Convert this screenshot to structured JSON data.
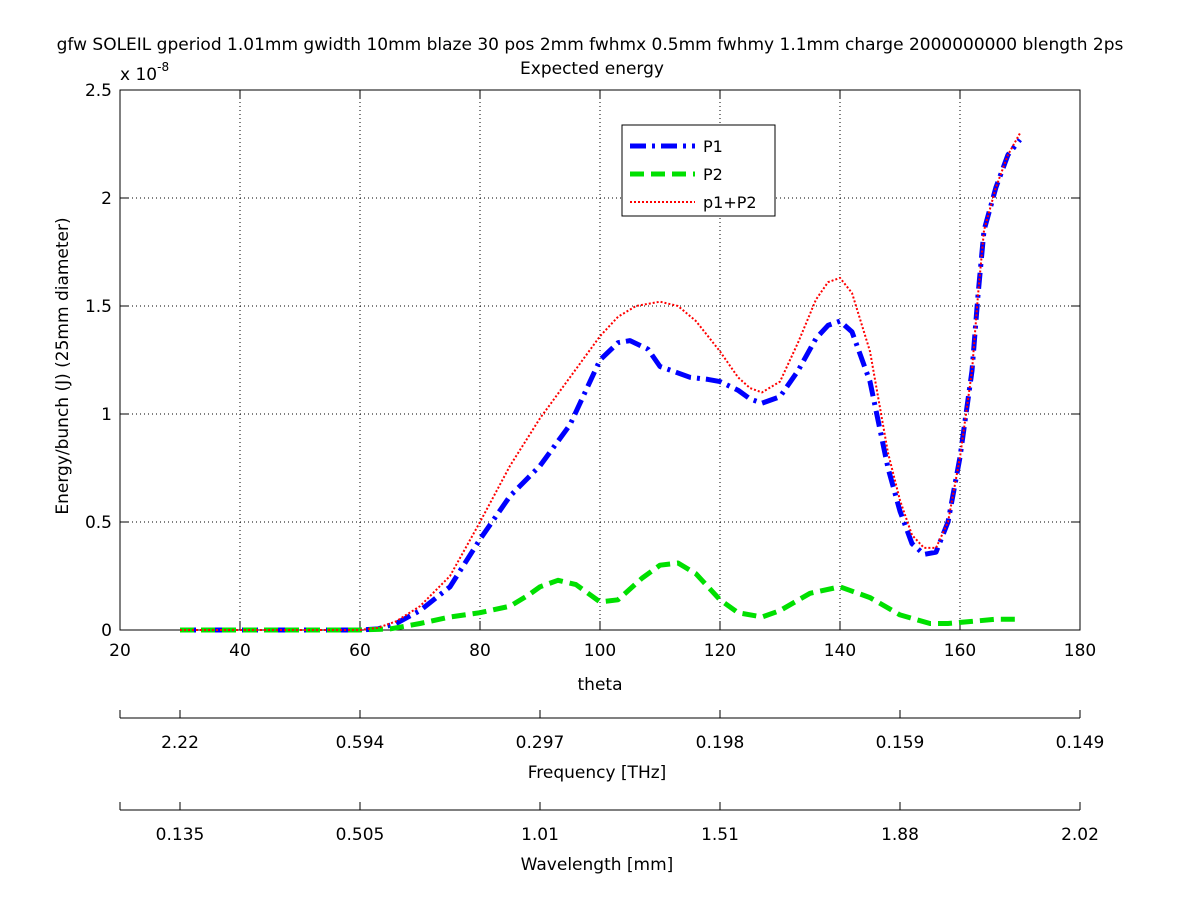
{
  "chart_data": {
    "type": "line",
    "title": "gfw SOLEIL gperiod 1.01mm gwidth 10mm blaze 30 pos 2mm fwhmx 0.5mm fwhmy 1.1mm charge 2000000000 blength 2ps",
    "subtitle": "Expected energy",
    "xlabel": "theta",
    "ylabel": "Energy/bunch (J) (25mm diameter)",
    "exponent_label": "x 10",
    "exponent_power": "-8",
    "xlim": [
      20,
      180
    ],
    "ylim": [
      0,
      2.5
    ],
    "x_ticks": [
      "20",
      "40",
      "60",
      "80",
      "100",
      "120",
      "140",
      "160",
      "180"
    ],
    "y_ticks": [
      "0",
      "0.5",
      "1",
      "1.5",
      "2",
      "2.5"
    ],
    "grid": true,
    "legend_position": "top-center",
    "series": [
      {
        "name": "P1",
        "color": "#0000ff",
        "style": "dash-dot",
        "x": [
          30,
          40,
          50,
          60,
          63,
          66,
          70,
          75,
          80,
          85,
          90,
          95,
          100,
          103,
          105,
          108,
          110,
          112,
          115,
          118,
          120,
          123,
          125,
          127,
          130,
          133,
          136,
          138,
          140,
          142,
          145,
          148,
          150,
          152,
          154,
          156,
          158,
          160,
          162,
          163,
          164,
          166,
          168,
          170
        ],
        "y": [
          0,
          0,
          0,
          0,
          0.005,
          0.03,
          0.09,
          0.2,
          0.42,
          0.62,
          0.76,
          0.95,
          1.25,
          1.33,
          1.34,
          1.3,
          1.22,
          1.2,
          1.17,
          1.16,
          1.15,
          1.11,
          1.07,
          1.05,
          1.08,
          1.2,
          1.35,
          1.41,
          1.43,
          1.38,
          1.15,
          0.75,
          0.55,
          0.4,
          0.35,
          0.36,
          0.5,
          0.8,
          1.2,
          1.55,
          1.85,
          2.05,
          2.2,
          2.27
        ]
      },
      {
        "name": "P2",
        "color": "#00e000",
        "style": "dashed",
        "x": [
          30,
          40,
          50,
          60,
          65,
          70,
          75,
          80,
          85,
          88,
          90,
          93,
          96,
          100,
          103,
          107,
          110,
          113,
          116,
          120,
          123,
          127,
          130,
          135,
          140,
          145,
          150,
          155,
          158,
          162,
          166,
          170
        ],
        "y": [
          0,
          0,
          0,
          0,
          0.005,
          0.03,
          0.06,
          0.08,
          0.11,
          0.16,
          0.2,
          0.23,
          0.21,
          0.13,
          0.14,
          0.24,
          0.3,
          0.31,
          0.26,
          0.14,
          0.08,
          0.06,
          0.09,
          0.17,
          0.2,
          0.15,
          0.07,
          0.03,
          0.03,
          0.04,
          0.05,
          0.05
        ]
      },
      {
        "name": "p1+P2",
        "color": "#ff0000",
        "style": "dotted",
        "x": [
          30,
          40,
          50,
          60,
          63,
          66,
          70,
          75,
          80,
          85,
          90,
          95,
          100,
          103,
          106,
          110,
          113,
          116,
          120,
          123,
          125,
          127,
          130,
          133,
          136,
          138,
          140,
          142,
          145,
          148,
          150,
          152,
          154,
          156,
          158,
          160,
          162,
          163,
          164,
          166,
          168,
          170
        ],
        "y": [
          0,
          0,
          0,
          0,
          0.01,
          0.04,
          0.11,
          0.25,
          0.5,
          0.76,
          0.98,
          1.17,
          1.36,
          1.45,
          1.5,
          1.52,
          1.5,
          1.43,
          1.29,
          1.17,
          1.12,
          1.1,
          1.15,
          1.33,
          1.53,
          1.61,
          1.63,
          1.56,
          1.29,
          0.82,
          0.6,
          0.44,
          0.38,
          0.38,
          0.5,
          0.8,
          1.2,
          1.55,
          1.85,
          2.05,
          2.2,
          2.3
        ]
      }
    ],
    "secondary_axes": [
      {
        "label": "Frequency [THz]",
        "tick_values_at_theta": [
          30,
          60,
          90,
          120,
          150,
          180
        ],
        "tick_labels": [
          "2.22",
          "0.594",
          "0.297",
          "0.198",
          "0.159",
          "0.149"
        ]
      },
      {
        "label": "Wavelength [mm]",
        "tick_values_at_theta": [
          30,
          60,
          90,
          120,
          150,
          180
        ],
        "tick_labels": [
          "0.135",
          "0.505",
          "1.01",
          "1.51",
          "1.88",
          "2.02"
        ]
      }
    ]
  }
}
